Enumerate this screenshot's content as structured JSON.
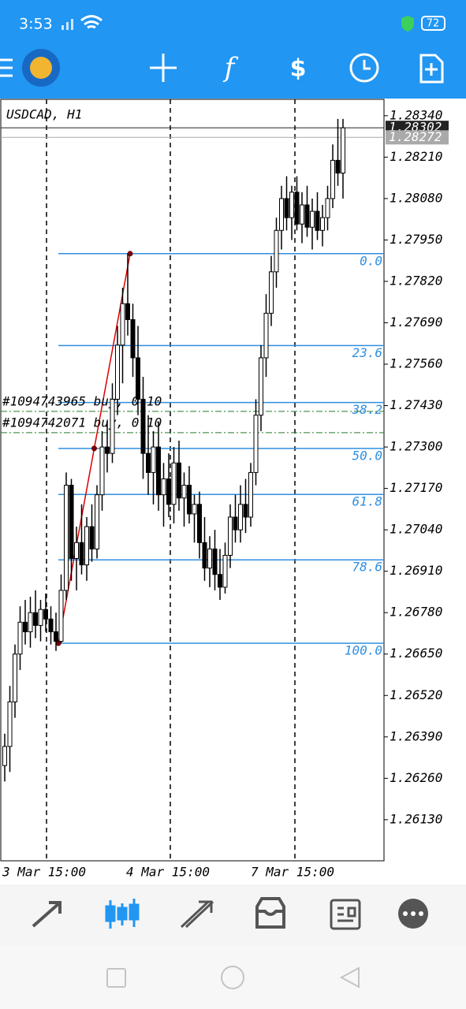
{
  "status_bar": {
    "time": "3:53",
    "battery": "72"
  },
  "chart_data": {
    "type": "candlestick",
    "symbol": "USDCAD, H1",
    "ylim": [
      1.26001,
      1.28394
    ],
    "yticks": [
      {
        "value": 1.2834,
        "label": "1.28340"
      },
      {
        "value": 1.2821,
        "label": "1.28210"
      },
      {
        "value": 1.2808,
        "label": "1.28080"
      },
      {
        "value": 1.2795,
        "label": "1.27950"
      },
      {
        "value": 1.2782,
        "label": "1.27820"
      },
      {
        "value": 1.2769,
        "label": "1.27690"
      },
      {
        "value": 1.2756,
        "label": "1.27560"
      },
      {
        "value": 1.2743,
        "label": "1.27430"
      },
      {
        "value": 1.273,
        "label": "1.27300"
      },
      {
        "value": 1.2717,
        "label": "1.27170"
      },
      {
        "value": 1.2704,
        "label": "1.27040"
      },
      {
        "value": 1.2691,
        "label": "1.26910"
      },
      {
        "value": 1.2678,
        "label": "1.26780"
      },
      {
        "value": 1.2665,
        "label": "1.26650"
      },
      {
        "value": 1.2652,
        "label": "1.26520"
      },
      {
        "value": 1.2639,
        "label": "1.26390"
      },
      {
        "value": 1.2626,
        "label": "1.26260"
      },
      {
        "value": 1.2613,
        "label": "1.26130"
      }
    ],
    "price_tags": [
      1.28302,
      1.28272
    ],
    "x_labels": [
      "3 Mar 15:00",
      "4 Mar 15:00",
      "7 Mar 15:00"
    ],
    "candles": [
      [
        1.263,
        1.264,
        1.2625,
        1.2636
      ],
      [
        1.2636,
        1.2655,
        1.2628,
        1.265
      ],
      [
        1.265,
        1.2668,
        1.2645,
        1.2665
      ],
      [
        1.2665,
        1.268,
        1.266,
        1.2675
      ],
      [
        1.2675,
        1.2682,
        1.2668,
        1.2672
      ],
      [
        1.2672,
        1.2683,
        1.2667,
        1.2678
      ],
      [
        1.2678,
        1.2685,
        1.267,
        1.2674
      ],
      [
        1.2674,
        1.2682,
        1.2669,
        1.2679
      ],
      [
        1.2679,
        1.2684,
        1.2672,
        1.2676
      ],
      [
        1.2676,
        1.268,
        1.2668,
        1.2672
      ],
      [
        1.2672,
        1.2678,
        1.2666,
        1.2669
      ],
      [
        1.2669,
        1.269,
        1.26684,
        1.2685
      ],
      [
        1.2685,
        1.2722,
        1.2682,
        1.2718
      ],
      [
        1.2718,
        1.272,
        1.2688,
        1.2695
      ],
      [
        1.2695,
        1.2705,
        1.2685,
        1.27
      ],
      [
        1.27,
        1.2712,
        1.269,
        1.2693
      ],
      [
        1.2693,
        1.2708,
        1.2688,
        1.2705
      ],
      [
        1.2705,
        1.2712,
        1.2694,
        1.2698
      ],
      [
        1.2698,
        1.2718,
        1.2695,
        1.2715
      ],
      [
        1.2715,
        1.2735,
        1.271,
        1.273
      ],
      [
        1.273,
        1.2738,
        1.2722,
        1.2728
      ],
      [
        1.2728,
        1.275,
        1.2725,
        1.2745
      ],
      [
        1.2745,
        1.2768,
        1.274,
        1.2762
      ],
      [
        1.2762,
        1.278,
        1.275,
        1.2775
      ],
      [
        1.2775,
        1.27907,
        1.2765,
        1.277
      ],
      [
        1.277,
        1.2775,
        1.2752,
        1.2758
      ],
      [
        1.2758,
        1.2768,
        1.274,
        1.2745
      ],
      [
        1.2745,
        1.2752,
        1.272,
        1.2728
      ],
      [
        1.2728,
        1.274,
        1.2715,
        1.2722
      ],
      [
        1.2722,
        1.2735,
        1.2712,
        1.273
      ],
      [
        1.273,
        1.2738,
        1.271,
        1.2715
      ],
      [
        1.2715,
        1.2725,
        1.2705,
        1.272
      ],
      [
        1.272,
        1.2728,
        1.2708,
        1.2712
      ],
      [
        1.2712,
        1.273,
        1.2706,
        1.2725
      ],
      [
        1.2725,
        1.2732,
        1.271,
        1.2714
      ],
      [
        1.2714,
        1.2722,
        1.2705,
        1.2718
      ],
      [
        1.2718,
        1.2724,
        1.2706,
        1.2709
      ],
      [
        1.2709,
        1.2715,
        1.27,
        1.2712
      ],
      [
        1.2712,
        1.2716,
        1.2695,
        1.27
      ],
      [
        1.27,
        1.2708,
        1.2688,
        1.2692
      ],
      [
        1.2692,
        1.2702,
        1.2686,
        1.2698
      ],
      [
        1.2698,
        1.2704,
        1.2685,
        1.269
      ],
      [
        1.269,
        1.2698,
        1.2682,
        1.2686
      ],
      [
        1.2686,
        1.27,
        1.2684,
        1.2696
      ],
      [
        1.2696,
        1.2712,
        1.2692,
        1.2708
      ],
      [
        1.2708,
        1.2715,
        1.27,
        1.2704
      ],
      [
        1.2704,
        1.2718,
        1.27,
        1.2712
      ],
      [
        1.2712,
        1.272,
        1.2703,
        1.2708
      ],
      [
        1.2708,
        1.2725,
        1.2705,
        1.2722
      ],
      [
        1.2722,
        1.2745,
        1.2718,
        1.274
      ],
      [
        1.274,
        1.2762,
        1.2735,
        1.2758
      ],
      [
        1.2758,
        1.2778,
        1.2752,
        1.2772
      ],
      [
        1.2772,
        1.279,
        1.2768,
        1.2785
      ],
      [
        1.2785,
        1.2802,
        1.278,
        1.2798
      ],
      [
        1.2798,
        1.2812,
        1.2792,
        1.2808
      ],
      [
        1.2808,
        1.2815,
        1.2798,
        1.2802
      ],
      [
        1.2802,
        1.2812,
        1.2795,
        1.281
      ],
      [
        1.281,
        1.2815,
        1.2798,
        1.28
      ],
      [
        1.28,
        1.281,
        1.2794,
        1.2806
      ],
      [
        1.2806,
        1.2812,
        1.2796,
        1.2799
      ],
      [
        1.2799,
        1.2808,
        1.2792,
        1.2804
      ],
      [
        1.2804,
        1.281,
        1.2795,
        1.2798
      ],
      [
        1.2798,
        1.2806,
        1.2793,
        1.2802
      ],
      [
        1.2802,
        1.2812,
        1.2798,
        1.2808
      ],
      [
        1.2808,
        1.2825,
        1.2805,
        1.282
      ],
      [
        1.282,
        1.2833,
        1.2812,
        1.2816
      ],
      [
        1.2816,
        1.2833,
        1.2808,
        1.28302
      ]
    ],
    "fibonacci": {
      "high": 1.27907,
      "low": 1.26684,
      "levels": [
        {
          "value": 0,
          "label": "0.0"
        },
        23.6,
        38.2,
        {
          "value": 50,
          "label": "50.0"
        },
        61.8,
        78.6,
        {
          "value": 100,
          "label": "100.0"
        }
      ]
    },
    "orders": [
      {
        "label": "#1094743965 buy, 0.10",
        "price": 1.27412
      },
      {
        "label": "#1094742071 buy, 0.10",
        "price": 1.27345
      }
    ]
  }
}
